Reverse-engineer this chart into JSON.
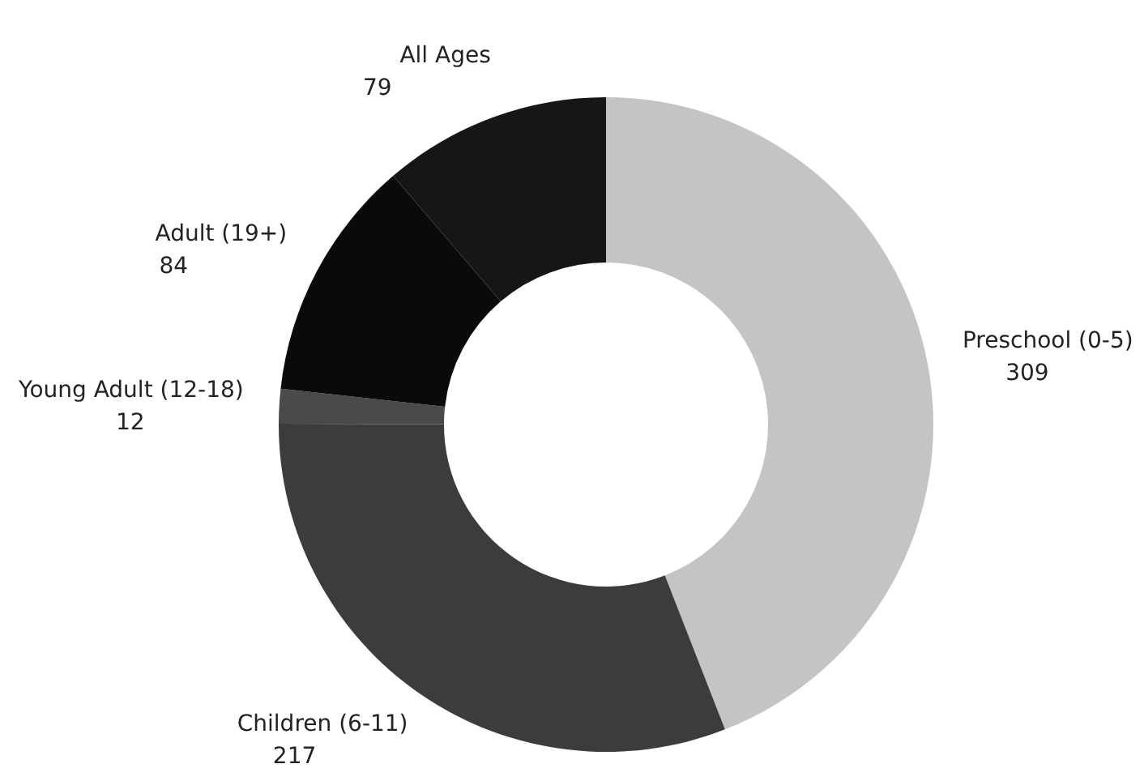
{
  "chart_data": {
    "type": "donut",
    "categories": [
      "Preschool (0-5)",
      "Children (6-11)",
      "Young Adult (12-18)",
      "Adult (19+)",
      "All Ages"
    ],
    "values": [
      309,
      217,
      12,
      84,
      79
    ],
    "colors": [
      "#c4c4c4",
      "#3c3c3c",
      "#4a4a4a",
      "#0a0a0a",
      "#161616"
    ],
    "data_labels": true,
    "legend": false
  }
}
